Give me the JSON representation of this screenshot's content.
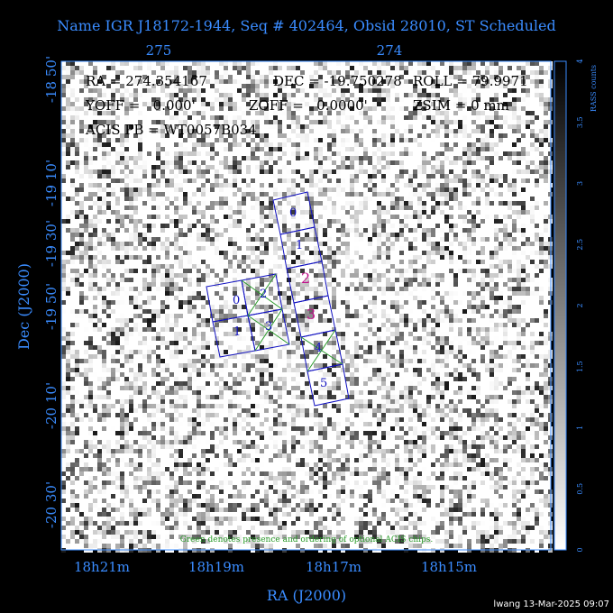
{
  "title": "Name IGR J18172-1944, Seq # 402464, Obsid 28010, ST Scheduled",
  "info": [
    "RA = 274.354167",
    "DEC = -19.750278",
    "ROLL = 79.9971",
    "YOFF =   0.000'",
    "ZOFF =   0.0000'",
    "ZSIM = 0 mm",
    "ACIS PB = WT0057B034"
  ],
  "top_axis": [
    "275",
    "274"
  ],
  "left_axis": [
    "-18 50'",
    "-19 10'",
    "-19 30'",
    "-19 50'",
    "-20 10'",
    "-20 30'"
  ],
  "bottom_axis": [
    "18h21m",
    "18h19m",
    "18h17m",
    "18h15m"
  ],
  "x_label": "RA (J2000)",
  "y_label": "Dec (J2000)",
  "colorbar": {
    "label": "RASS counts",
    "ticks": [
      "0",
      "0.5",
      "1",
      "1.5",
      "2",
      "2.5",
      "3",
      "3.5",
      "4"
    ]
  },
  "i_chips": [
    "0",
    "1",
    "2",
    "3"
  ],
  "s_chips": [
    "0",
    "1",
    "2",
    "3",
    "4",
    "5"
  ],
  "note": "Green denotes presence and ordering of optional ACIS chips.",
  "credit": "lwang 13-Mar-2025 09:07"
}
